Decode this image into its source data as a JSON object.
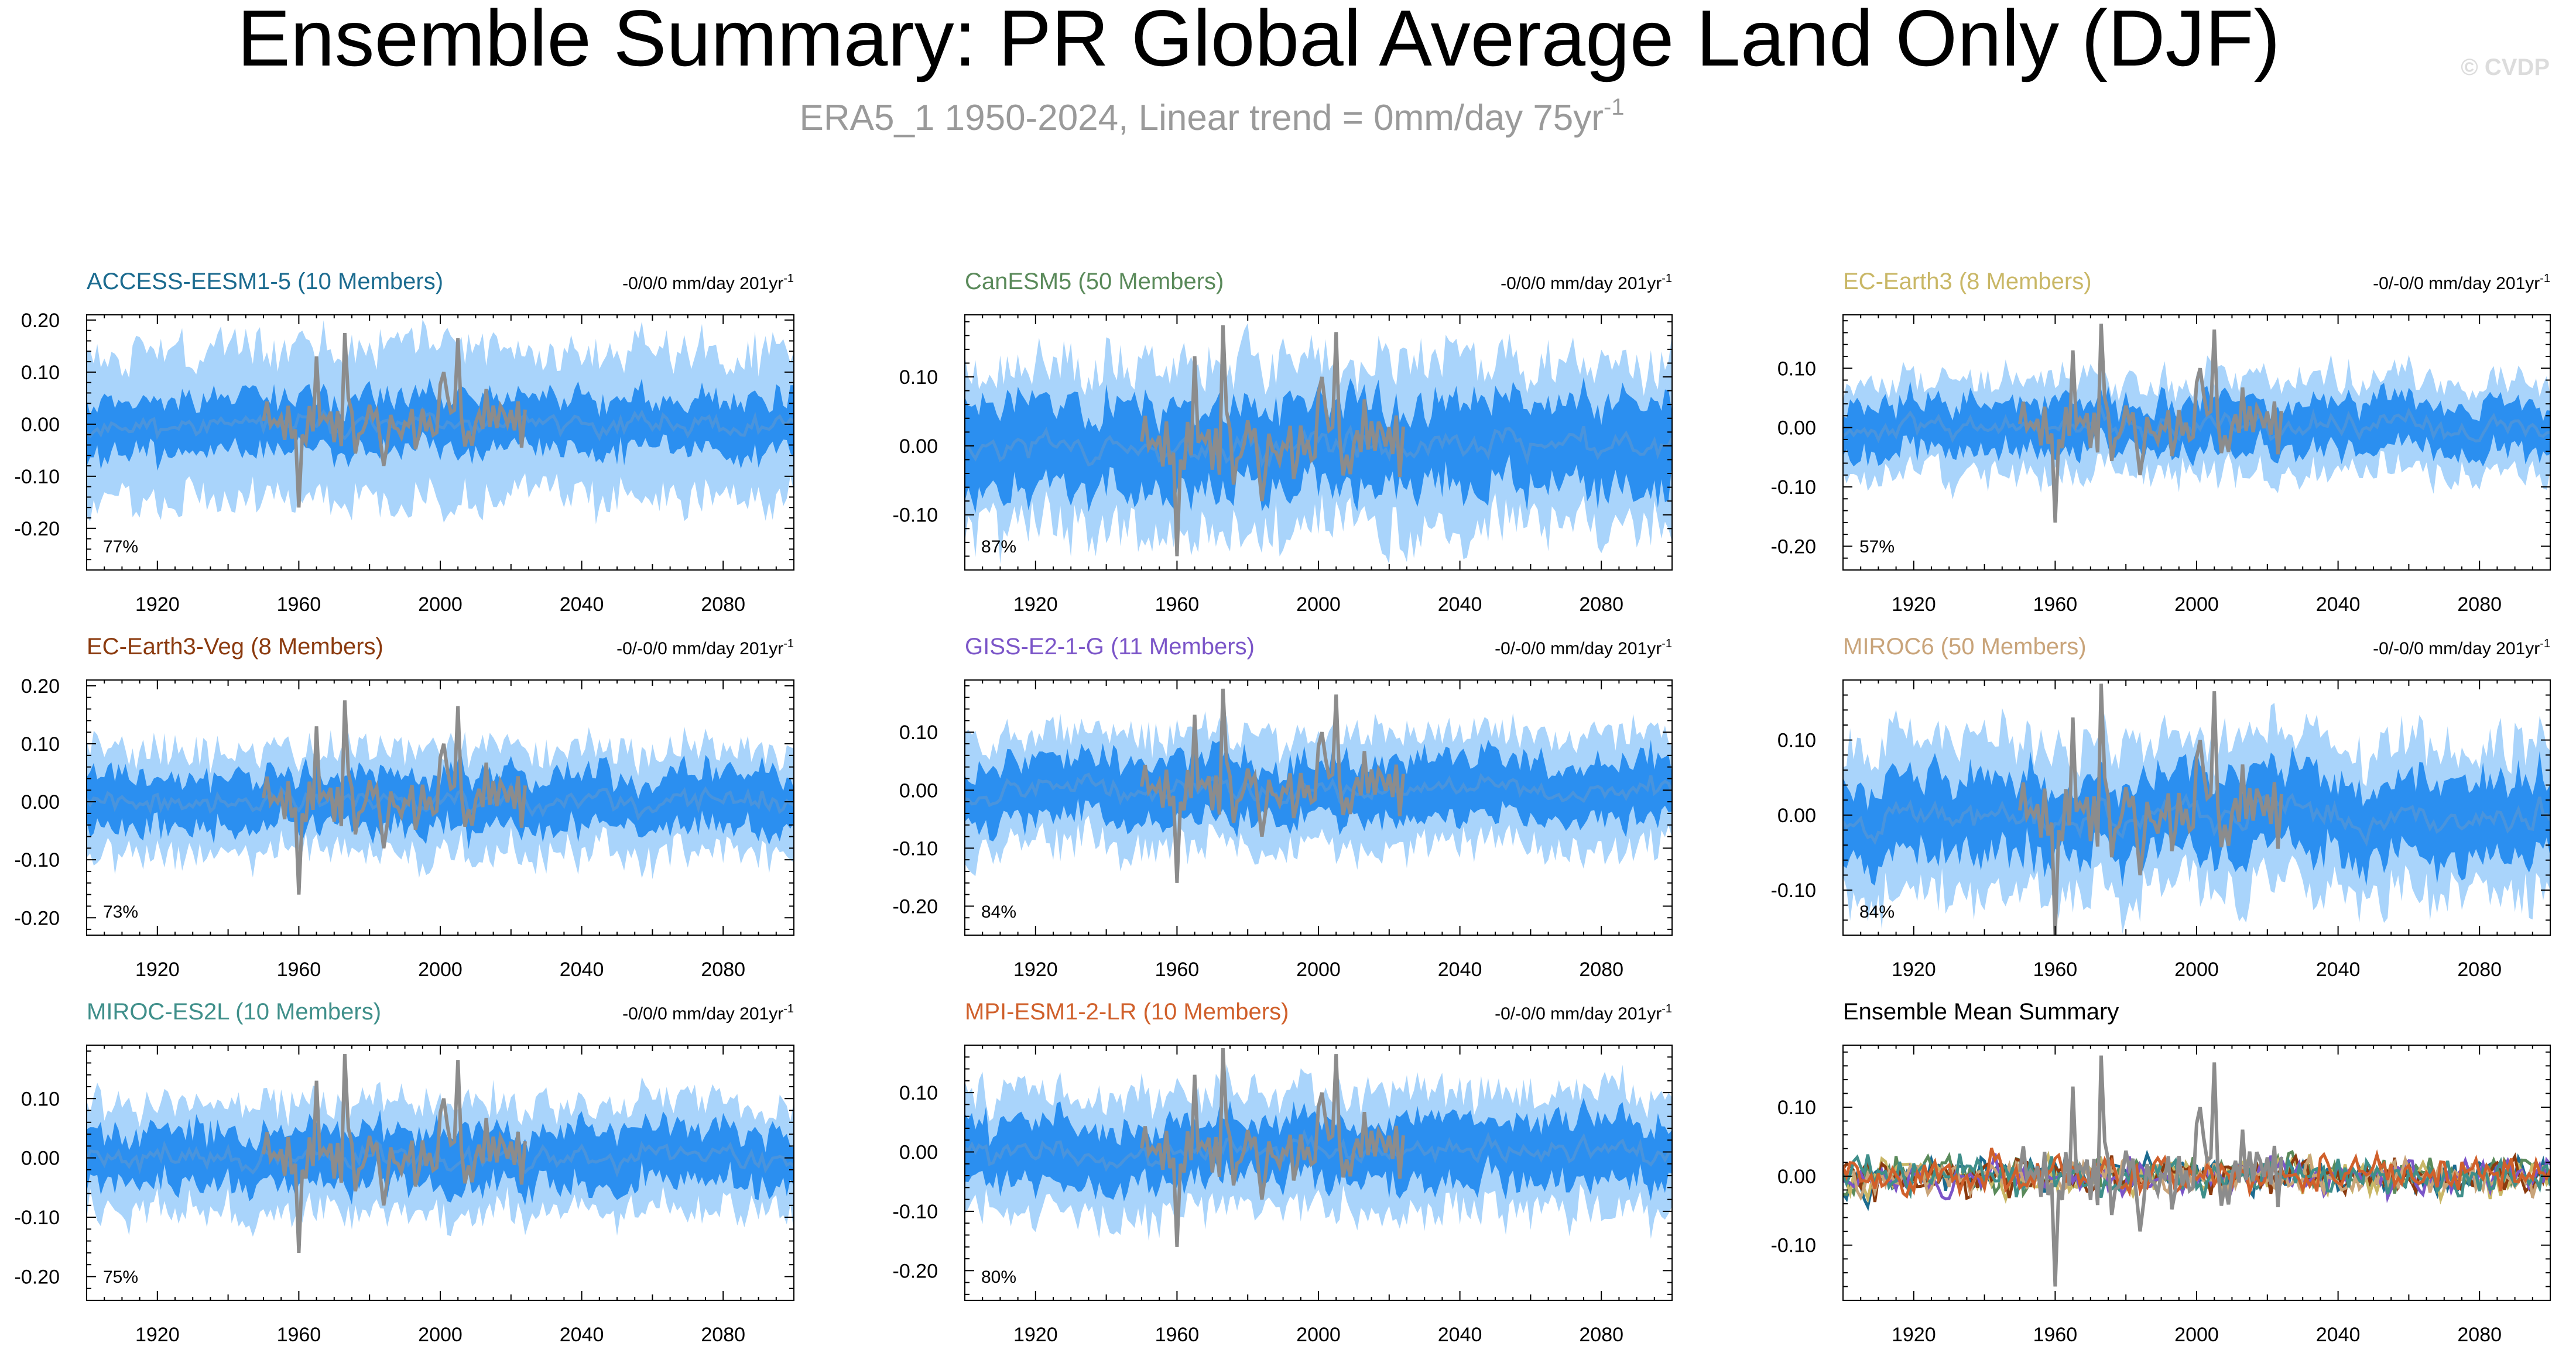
{
  "header": {
    "title": "Ensemble Summary: PR Global Average Land Only (DJF)",
    "subtitle_main": "ERA5_1 1950-2024, Linear trend = 0mm/day 75yr",
    "subtitle_sup": "-1",
    "watermark": "© CVDP"
  },
  "colors": {
    "outer_band": "#a9d4fb",
    "inner_band": "#2b8ff0",
    "ens_mean": "#4a94dc",
    "obs": "#8c8c8c",
    "frame": "#000000"
  },
  "chart_data": [
    {
      "type": "area",
      "title": "ACCESS-EESM1-5 (10 Members)",
      "title_color": "#1b6b8f",
      "trend": "-0/0/0 mm/day 201yr",
      "trend_sup": "-1",
      "percent": "77%",
      "x_ticks": [
        1920,
        1960,
        2000,
        2040,
        2080
      ],
      "xlim": [
        1900,
        2100
      ],
      "y_ticks": [
        "0.20",
        "0.10",
        "0.00",
        "-0.10",
        "-0.20"
      ],
      "y_tick_values": [
        0.2,
        0.1,
        0.0,
        -0.1,
        -0.2
      ],
      "ylim": [
        -0.28,
        0.21
      ],
      "outer_spread": 0.14,
      "inner_spread": 0.05,
      "seed": 11
    },
    {
      "type": "area",
      "title": "CanESM5 (50 Members)",
      "title_color": "#5a8a5a",
      "trend": "-0/0/0 mm/day 201yr",
      "trend_sup": "-1",
      "percent": "87%",
      "x_ticks": [
        1920,
        1960,
        2000,
        2040,
        2080
      ],
      "xlim": [
        1900,
        2100
      ],
      "y_ticks": [
        "0.10",
        "0.00",
        "-0.10"
      ],
      "y_tick_values": [
        0.1,
        0.0,
        -0.1
      ],
      "ylim": [
        -0.18,
        0.19
      ],
      "outer_spread": 0.12,
      "inner_spread": 0.06,
      "seed": 23
    },
    {
      "type": "area",
      "title": "EC-Earth3 (8 Members)",
      "title_color": "#c9b766",
      "trend": "-0/-0/0 mm/day 201yr",
      "trend_sup": "-1",
      "percent": "57%",
      "x_ticks": [
        1920,
        1960,
        2000,
        2040,
        2080
      ],
      "xlim": [
        1900,
        2100
      ],
      "y_ticks": [
        "0.10",
        "0.00",
        "-0.10",
        "-0.20"
      ],
      "y_tick_values": [
        0.1,
        0.0,
        -0.1,
        -0.2
      ],
      "ylim": [
        -0.24,
        0.19
      ],
      "outer_spread": 0.08,
      "inner_spread": 0.04,
      "seed": 37
    },
    {
      "type": "area",
      "title": "EC-Earth3-Veg (8 Members)",
      "title_color": "#8b3a0e",
      "trend": "-0/-0/0 mm/day 201yr",
      "trend_sup": "-1",
      "percent": "73%",
      "x_ticks": [
        1920,
        1960,
        2000,
        2040,
        2080
      ],
      "xlim": [
        1900,
        2100
      ],
      "y_ticks": [
        "0.20",
        "0.10",
        "0.00",
        "-0.10",
        "-0.20"
      ],
      "y_tick_values": [
        0.2,
        0.1,
        0.0,
        -0.1,
        -0.2
      ],
      "ylim": [
        -0.23,
        0.21
      ],
      "outer_spread": 0.09,
      "inner_spread": 0.045,
      "seed": 41
    },
    {
      "type": "area",
      "title": "GISS-E2-1-G (11 Members)",
      "title_color": "#7b55c8",
      "trend": "-0/-0/0 mm/day 201yr",
      "trend_sup": "-1",
      "percent": "84%",
      "x_ticks": [
        1920,
        1960,
        2000,
        2040,
        2080
      ],
      "xlim": [
        1900,
        2100
      ],
      "y_ticks": [
        "0.10",
        "0.00",
        "-0.10",
        "-0.20"
      ],
      "y_tick_values": [
        0.1,
        0.0,
        -0.1,
        -0.2
      ],
      "ylim": [
        -0.25,
        0.19
      ],
      "outer_spread": 0.1,
      "inner_spread": 0.05,
      "seed": 53
    },
    {
      "type": "area",
      "title": "MIROC6 (50 Members)",
      "title_color": "#c9a47a",
      "trend": "-0/-0/0 mm/day 201yr",
      "trend_sup": "-1",
      "percent": "84%",
      "x_ticks": [
        1920,
        1960,
        2000,
        2040,
        2080
      ],
      "xlim": [
        1900,
        2100
      ],
      "y_ticks": [
        "0.10",
        "0.00",
        "-0.10"
      ],
      "y_tick_values": [
        0.1,
        0.0,
        -0.1
      ],
      "ylim": [
        -0.16,
        0.18
      ],
      "outer_spread": 0.1,
      "inner_spread": 0.05,
      "seed": 67
    },
    {
      "type": "area",
      "title": "MIROC-ES2L (10 Members)",
      "title_color": "#3f8f8a",
      "trend": "-0/0/0 mm/day 201yr",
      "trend_sup": "-1",
      "percent": "75%",
      "x_ticks": [
        1920,
        1960,
        2000,
        2040,
        2080
      ],
      "xlim": [
        1900,
        2100
      ],
      "y_ticks": [
        "0.10",
        "0.00",
        "-0.10",
        "-0.20"
      ],
      "y_tick_values": [
        0.1,
        0.0,
        -0.1,
        -0.2
      ],
      "ylim": [
        -0.24,
        0.19
      ],
      "outer_spread": 0.09,
      "inner_spread": 0.045,
      "seed": 71
    },
    {
      "type": "area",
      "title": "MPI-ESM1-2-LR (10 Members)",
      "title_color": "#d0602b",
      "trend": "-0/-0/0 mm/day 201yr",
      "trend_sup": "-1",
      "percent": "80%",
      "x_ticks": [
        1920,
        1960,
        2000,
        2040,
        2080
      ],
      "xlim": [
        1900,
        2100
      ],
      "y_ticks": [
        "0.10",
        "0.00",
        "-0.10",
        "-0.20"
      ],
      "y_tick_values": [
        0.1,
        0.0,
        -0.1,
        -0.2
      ],
      "ylim": [
        -0.25,
        0.18
      ],
      "outer_spread": 0.1,
      "inner_spread": 0.05,
      "seed": 83
    },
    {
      "type": "line",
      "title": "Ensemble Mean Summary",
      "title_color": "#000000",
      "trend": "",
      "trend_sup": "",
      "percent": "",
      "x_ticks": [
        1920,
        1960,
        2000,
        2040,
        2080
      ],
      "xlim": [
        1900,
        2100
      ],
      "y_ticks": [
        "0.10",
        "0.00",
        "-0.10"
      ],
      "y_tick_values": [
        0.1,
        0.0,
        -0.1
      ],
      "ylim": [
        -0.18,
        0.19
      ],
      "seed": 97,
      "series_colors": [
        "#1b6b8f",
        "#5a8a5a",
        "#c9b766",
        "#8b3a0e",
        "#7b55c8",
        "#c9a47a",
        "#3f8f8a",
        "#d0602b"
      ]
    }
  ]
}
